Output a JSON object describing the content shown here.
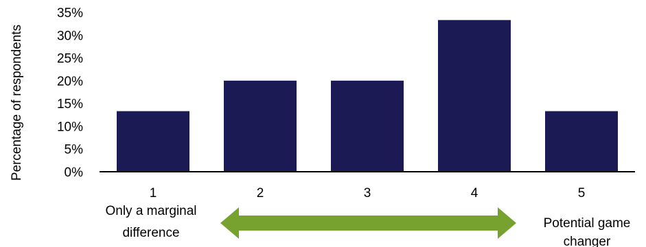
{
  "chart_data": {
    "type": "bar",
    "categories": [
      "1",
      "2",
      "3",
      "4",
      "5"
    ],
    "values": [
      13.3,
      20,
      20,
      33.3,
      13.3
    ],
    "ylabel": "Percentage of respondents",
    "xlabel": "",
    "ylim": [
      0,
      35
    ],
    "yticks": [
      "0%",
      "5%",
      "10%",
      "15%",
      "20%",
      "25%",
      "30%",
      "35%"
    ],
    "grid": false,
    "annotations": {
      "left_label": [
        "Only a marginal",
        "difference"
      ],
      "right_label": [
        "Potential game",
        "changer"
      ]
    }
  },
  "colors": {
    "bar": "#1b1a55",
    "arrow": "#78a22f",
    "axis": "#000000"
  }
}
